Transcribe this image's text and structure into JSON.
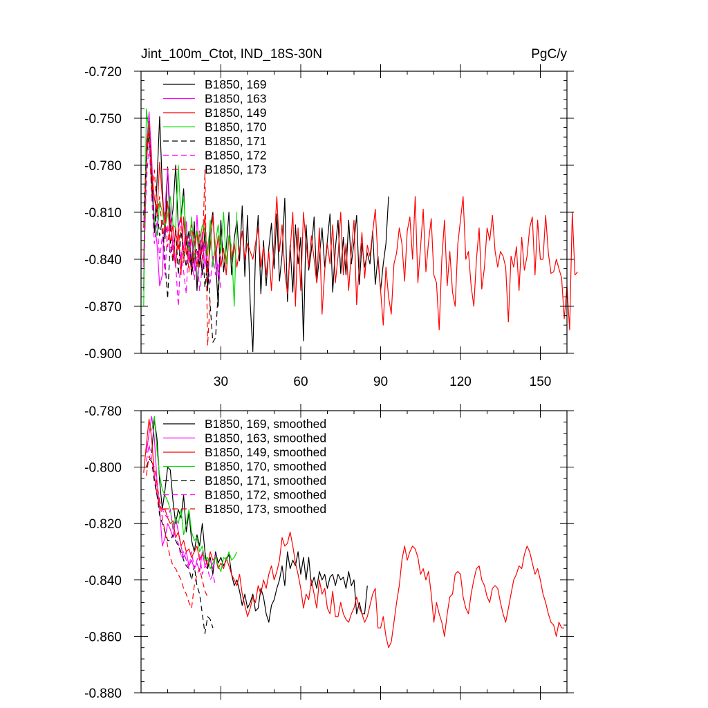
{
  "chart_data": [
    {
      "type": "line",
      "title_left": "Jint_100m_Ctot, IND_18S-30N",
      "title_right": "PgC/y",
      "xlabel": "",
      "ylabel": "",
      "xlim": [
        0,
        160
      ],
      "ylim": [
        -0.9,
        -0.72
      ],
      "xticks": [
        30,
        60,
        90,
        120,
        150
      ],
      "xtick_labels": [
        "30",
        "60",
        "90",
        "120",
        "150"
      ],
      "yticks": [
        -0.72,
        -0.75,
        -0.78,
        -0.81,
        -0.84,
        -0.87,
        -0.9
      ],
      "ytick_labels": [
        "-0.720",
        "-0.750",
        "-0.780",
        "-0.810",
        "-0.840",
        "-0.870",
        "-0.900"
      ],
      "grid": false,
      "legend_position": "top-left",
      "series": [
        {
          "name": "B1850, 169",
          "label": "B1850, 169",
          "color": "#000000",
          "dash": "solid",
          "x_start": 1,
          "values": [
            -0.86,
            -0.772,
            -0.752,
            -0.785,
            -0.823,
            -0.79,
            -0.749,
            -0.795,
            -0.827,
            -0.781,
            -0.822,
            -0.808,
            -0.78,
            -0.82,
            -0.813,
            -0.795,
            -0.831,
            -0.822,
            -0.845,
            -0.816,
            -0.86,
            -0.83,
            -0.85,
            -0.82,
            -0.86,
            -0.82,
            -0.81,
            -0.84,
            -0.87,
            -0.815,
            -0.848,
            -0.833,
            -0.81,
            -0.85,
            -0.827,
            -0.815,
            -0.841,
            -0.806,
            -0.851,
            -0.812,
            -0.868,
            -0.899,
            -0.837,
            -0.812,
            -0.862,
            -0.828,
            -0.857,
            -0.833,
            -0.817,
            -0.846,
            -0.811,
            -0.854,
            -0.837,
            -0.801,
            -0.867,
            -0.831,
            -0.861,
            -0.818,
            -0.843,
            -0.826,
            -0.892,
            -0.818,
            -0.847,
            -0.834,
            -0.813,
            -0.855,
            -0.839,
            -0.82,
            -0.845,
            -0.828,
            -0.811,
            -0.861,
            -0.833,
            -0.815,
            -0.849,
            -0.826,
            -0.85,
            -0.815,
            -0.843,
            -0.829,
            -0.812,
            -0.856,
            -0.83,
            -0.845,
            -0.836,
            -0.843,
            -0.822,
            -0.856,
            -0.838,
            -0.86,
            -0.843,
            -0.83,
            -0.8
          ]
        },
        {
          "name": "B1850, 163",
          "label": "B1850, 163",
          "color": "#ff00ff",
          "dash": "solid",
          "x_start": 1,
          "values": [
            -0.82,
            -0.77,
            -0.746,
            -0.775,
            -0.817,
            -0.83,
            -0.857,
            -0.85,
            -0.808,
            -0.782,
            -0.81,
            -0.832,
            -0.845,
            -0.82,
            -0.812,
            -0.835,
            -0.816,
            -0.842,
            -0.825,
            -0.847,
            -0.812,
            -0.84,
            -0.823,
            -0.845,
            -0.832,
            -0.82,
            -0.843,
            -0.83,
            -0.852,
            -0.838
          ]
        },
        {
          "name": "B1850, 149",
          "label": "B1850, 149",
          "color": "#ff0000",
          "dash": "solid",
          "x_start": 1,
          "values": [
            -0.842,
            -0.765,
            -0.757,
            -0.784,
            -0.801,
            -0.811,
            -0.778,
            -0.801,
            -0.821,
            -0.803,
            -0.83,
            -0.818,
            -0.845,
            -0.82,
            -0.85,
            -0.813,
            -0.837,
            -0.828,
            -0.85,
            -0.83,
            -0.822,
            -0.845,
            -0.83,
            -0.812,
            -0.848,
            -0.832,
            -0.812,
            -0.84,
            -0.825,
            -0.845,
            -0.833,
            -0.85,
            -0.825,
            -0.84,
            -0.83,
            -0.845,
            -0.834,
            -0.822,
            -0.84,
            -0.83,
            -0.835,
            -0.84,
            -0.83,
            -0.82,
            -0.845,
            -0.832,
            -0.85,
            -0.835,
            -0.86,
            -0.83,
            -0.8,
            -0.835,
            -0.818,
            -0.848,
            -0.862,
            -0.835,
            -0.81,
            -0.87,
            -0.82,
            -0.86,
            -0.81,
            -0.83,
            -0.845,
            -0.825,
            -0.84,
            -0.855,
            -0.82,
            -0.875,
            -0.847,
            -0.83,
            -0.843,
            -0.818,
            -0.855,
            -0.838,
            -0.81,
            -0.85,
            -0.83,
            -0.86,
            -0.835,
            -0.815,
            -0.869,
            -0.844,
            -0.823,
            -0.852,
            -0.831,
            -0.838,
            -0.823,
            -0.808,
            -0.84,
            -0.86,
            -0.882,
            -0.845,
            -0.864,
            -0.875,
            -0.843,
            -0.836,
            -0.82,
            -0.83,
            -0.854,
            -0.822,
            -0.813,
            -0.84,
            -0.8,
            -0.855,
            -0.832,
            -0.808,
            -0.848,
            -0.829,
            -0.814,
            -0.85,
            -0.855,
            -0.885,
            -0.84,
            -0.815,
            -0.857,
            -0.835,
            -0.861,
            -0.87,
            -0.83,
            -0.815,
            -0.8,
            -0.84,
            -0.835,
            -0.857,
            -0.87,
            -0.84,
            -0.82,
            -0.859,
            -0.845,
            -0.82,
            -0.828,
            -0.812,
            -0.835,
            -0.845,
            -0.835,
            -0.838,
            -0.845,
            -0.88,
            -0.838,
            -0.845,
            -0.832,
            -0.86,
            -0.826,
            -0.847,
            -0.838,
            -0.82,
            -0.813,
            -0.85,
            -0.815,
            -0.84,
            -0.84,
            -0.812,
            -0.836,
            -0.849,
            -0.848,
            -0.84,
            -0.846,
            -0.852,
            -0.878,
            -0.857,
            -0.885,
            -0.81,
            -0.85,
            -0.848
          ]
        },
        {
          "name": "B1850, 170",
          "label": "B1850, 170",
          "color": "#00dd00",
          "dash": "solid",
          "x_start": 1,
          "values": [
            -0.87,
            -0.744,
            -0.76,
            -0.798,
            -0.815,
            -0.825,
            -0.803,
            -0.81,
            -0.819,
            -0.812,
            -0.8,
            -0.818,
            -0.82,
            -0.78,
            -0.815,
            -0.8,
            -0.825,
            -0.835,
            -0.813,
            -0.84,
            -0.822,
            -0.83,
            -0.818,
            -0.822,
            -0.838,
            -0.815,
            -0.845,
            -0.829,
            -0.818,
            -0.836,
            -0.81,
            -0.843,
            -0.825,
            -0.832,
            -0.87,
            -0.81
          ]
        },
        {
          "name": "B1850, 171",
          "label": "B1850, 171",
          "color": "#000000",
          "dash": "dashed",
          "x_start": 1,
          "values": [
            -0.812,
            -0.775,
            -0.76,
            -0.79,
            -0.822,
            -0.808,
            -0.825,
            -0.815,
            -0.842,
            -0.865,
            -0.828,
            -0.842,
            -0.82,
            -0.85,
            -0.822,
            -0.835,
            -0.845,
            -0.825,
            -0.85,
            -0.838,
            -0.833,
            -0.843,
            -0.83,
            -0.858,
            -0.84,
            -0.87,
            -0.893,
            -0.89,
            -0.86,
            -0.815
          ]
        },
        {
          "name": "B1850, 172",
          "label": "B1850, 172",
          "color": "#ff00ff",
          "dash": "dashed",
          "x_start": 1,
          "values": [
            -0.845,
            -0.792,
            -0.765,
            -0.8,
            -0.83,
            -0.815,
            -0.84,
            -0.825,
            -0.85,
            -0.818,
            -0.836,
            -0.828,
            -0.843,
            -0.87,
            -0.835,
            -0.848,
            -0.862,
            -0.825,
            -0.84,
            -0.853,
            -0.835,
            -0.86,
            -0.845,
            -0.83,
            -0.842,
            -0.855,
            -0.838,
            -0.85,
            -0.842,
            -0.86
          ]
        },
        {
          "name": "B1850, 173",
          "label": "B1850, 173",
          "color": "#ff0000",
          "dash": "dashed",
          "x_start": 1,
          "values": [
            -0.82,
            -0.78,
            -0.752,
            -0.8,
            -0.783,
            -0.812,
            -0.8,
            -0.825,
            -0.81,
            -0.832,
            -0.815,
            -0.84,
            -0.82,
            -0.835,
            -0.812,
            -0.842,
            -0.825,
            -0.848,
            -0.818,
            -0.83,
            -0.845,
            -0.822,
            -0.84,
            -0.783,
            -0.895,
            -0.865
          ]
        }
      ]
    },
    {
      "type": "line",
      "title_left": "",
      "title_right": "",
      "xlabel": "",
      "ylabel": "",
      "xlim": [
        0,
        160
      ],
      "ylim": [
        -0.88,
        -0.78
      ],
      "xticks": [
        30,
        60,
        90,
        120,
        150
      ],
      "xtick_labels": [],
      "yticks": [
        -0.78,
        -0.8,
        -0.82,
        -0.84,
        -0.86,
        -0.88
      ],
      "ytick_labels": [
        "-0.780",
        "-0.800",
        "-0.820",
        "-0.840",
        "-0.860",
        "-0.880"
      ],
      "grid": false,
      "legend_position": "top-left",
      "series": [
        {
          "name": "B1850, 169, smoothed",
          "label": "B1850, 169, smoothed",
          "color": "#000000",
          "dash": "solid",
          "x_start": 4,
          "values": [
            -0.795,
            -0.783,
            -0.79,
            -0.805,
            -0.815,
            -0.808,
            -0.8,
            -0.801,
            -0.812,
            -0.82,
            -0.815,
            -0.818,
            -0.81,
            -0.823,
            -0.816,
            -0.826,
            -0.83,
            -0.824,
            -0.828,
            -0.82,
            -0.83,
            -0.836,
            -0.832,
            -0.838,
            -0.83,
            -0.834,
            -0.832,
            -0.835,
            -0.833,
            -0.831,
            -0.838,
            -0.842,
            -0.84,
            -0.844,
            -0.849,
            -0.845,
            -0.85,
            -0.848,
            -0.845,
            -0.851,
            -0.85,
            -0.843,
            -0.846,
            -0.852,
            -0.855,
            -0.849,
            -0.847,
            -0.843,
            -0.84,
            -0.835,
            -0.842,
            -0.83,
            -0.836,
            -0.833,
            -0.835,
            -0.83,
            -0.838,
            -0.832,
            -0.84,
            -0.832,
            -0.842,
            -0.839,
            -0.843,
            -0.837,
            -0.84,
            -0.838,
            -0.843,
            -0.839,
            -0.838,
            -0.842,
            -0.838,
            -0.84,
            -0.839,
            -0.843,
            -0.837,
            -0.842,
            -0.84,
            -0.852,
            -0.848,
            -0.852,
            -0.852,
            -0.842
          ]
        },
        {
          "name": "B1850, 163, smoothed",
          "label": "B1850, 163, smoothed",
          "color": "#ff00ff",
          "dash": "solid",
          "x_start": 2,
          "values": [
            -0.795,
            -0.788,
            -0.782,
            -0.79,
            -0.805,
            -0.815,
            -0.828,
            -0.825,
            -0.82,
            -0.822,
            -0.825,
            -0.818,
            -0.823,
            -0.828,
            -0.832,
            -0.83,
            -0.835,
            -0.833,
            -0.836,
            -0.834,
            -0.837,
            -0.83,
            -0.835,
            -0.833,
            -0.833,
            -0.836,
            -0.831
          ]
        },
        {
          "name": "B1850, 149, smoothed",
          "label": "B1850, 149, smoothed",
          "color": "#ff0000",
          "dash": "solid",
          "x_start": 1,
          "values": [
            -0.802,
            -0.792,
            -0.783,
            -0.79,
            -0.803,
            -0.81,
            -0.814,
            -0.815,
            -0.815,
            -0.818,
            -0.82,
            -0.819,
            -0.825,
            -0.823,
            -0.828,
            -0.826,
            -0.83,
            -0.829,
            -0.832,
            -0.83,
            -0.828,
            -0.833,
            -0.831,
            -0.832,
            -0.835,
            -0.83,
            -0.833,
            -0.832,
            -0.836,
            -0.834,
            -0.836,
            -0.832,
            -0.835,
            -0.838,
            -0.84,
            -0.842,
            -0.838,
            -0.845,
            -0.849,
            -0.853,
            -0.85,
            -0.846,
            -0.848,
            -0.842,
            -0.845,
            -0.84,
            -0.843,
            -0.838,
            -0.835,
            -0.84,
            -0.837,
            -0.833,
            -0.825,
            -0.828,
            -0.827,
            -0.823,
            -0.828,
            -0.834,
            -0.838,
            -0.843,
            -0.85,
            -0.845,
            -0.847,
            -0.84,
            -0.845,
            -0.85,
            -0.84,
            -0.845,
            -0.843,
            -0.85,
            -0.852,
            -0.844,
            -0.853,
            -0.853,
            -0.848,
            -0.852,
            -0.854,
            -0.855,
            -0.852,
            -0.85,
            -0.846,
            -0.85,
            -0.852,
            -0.855,
            -0.853,
            -0.849,
            -0.845,
            -0.843,
            -0.857,
            -0.857,
            -0.853,
            -0.86,
            -0.864,
            -0.862,
            -0.855,
            -0.848,
            -0.842,
            -0.833,
            -0.828,
            -0.833,
            -0.83,
            -0.828,
            -0.829,
            -0.832,
            -0.838,
            -0.836,
            -0.84,
            -0.837,
            -0.845,
            -0.855,
            -0.848,
            -0.852,
            -0.855,
            -0.86,
            -0.852,
            -0.846,
            -0.845,
            -0.838,
            -0.837,
            -0.838,
            -0.846,
            -0.85,
            -0.852,
            -0.845,
            -0.84,
            -0.836,
            -0.835,
            -0.84,
            -0.842,
            -0.846,
            -0.848,
            -0.843,
            -0.842,
            -0.843,
            -0.848,
            -0.852,
            -0.855,
            -0.85,
            -0.845,
            -0.84,
            -0.838,
            -0.835,
            -0.836,
            -0.831,
            -0.828,
            -0.83,
            -0.834,
            -0.838,
            -0.836,
            -0.84,
            -0.845,
            -0.848,
            -0.852,
            -0.855,
            -0.856,
            -0.86,
            -0.855,
            -0.857,
            -0.857
          ]
        },
        {
          "name": "B1850, 170, smoothed",
          "label": "B1850, 170, smoothed",
          "color": "#00dd00",
          "dash": "solid",
          "x_start": 4,
          "values": [
            -0.787,
            -0.782,
            -0.794,
            -0.803,
            -0.808,
            -0.81,
            -0.812,
            -0.815,
            -0.822,
            -0.818,
            -0.82,
            -0.815,
            -0.824,
            -0.82,
            -0.815,
            -0.823,
            -0.826,
            -0.825,
            -0.83,
            -0.828,
            -0.833,
            -0.832,
            -0.836,
            -0.834,
            -0.832,
            -0.835,
            -0.837,
            -0.832,
            -0.833,
            -0.83,
            -0.833,
            -0.832,
            -0.83
          ]
        },
        {
          "name": "B1850, 171, smoothed",
          "label": "B1850, 171, smoothed",
          "color": "#000000",
          "dash": "dashed",
          "x_start": 2,
          "values": [
            -0.8,
            -0.797,
            -0.798,
            -0.805,
            -0.81,
            -0.817,
            -0.82,
            -0.823,
            -0.826,
            -0.826,
            -0.824,
            -0.826,
            -0.828,
            -0.83,
            -0.833,
            -0.835,
            -0.836,
            -0.84,
            -0.835,
            -0.842,
            -0.845,
            -0.852,
            -0.859,
            -0.853,
            -0.854,
            -0.857
          ]
        },
        {
          "name": "B1850, 172, smoothed",
          "label": "B1850, 172, smoothed",
          "color": "#ff00ff",
          "dash": "dashed",
          "x_start": 2,
          "values": [
            -0.798,
            -0.792,
            -0.797,
            -0.803,
            -0.808,
            -0.812,
            -0.815,
            -0.817,
            -0.818,
            -0.815,
            -0.822,
            -0.825,
            -0.827,
            -0.832,
            -0.83,
            -0.833,
            -0.836,
            -0.83,
            -0.836,
            -0.833,
            -0.831,
            -0.838,
            -0.835,
            -0.836,
            -0.84,
            -0.838,
            -0.842
          ]
        },
        {
          "name": "B1850, 173, smoothed",
          "label": "B1850, 173, smoothed",
          "color": "#ff0000",
          "dash": "dashed",
          "x_start": 2,
          "values": [
            -0.803,
            -0.796,
            -0.798,
            -0.8,
            -0.806,
            -0.812,
            -0.818,
            -0.823,
            -0.828,
            -0.832,
            -0.835,
            -0.836,
            -0.838,
            -0.84,
            -0.843,
            -0.845,
            -0.848,
            -0.85,
            -0.842,
            -0.838,
            -0.836,
            -0.84,
            -0.844,
            -0.846
          ]
        }
      ]
    }
  ]
}
